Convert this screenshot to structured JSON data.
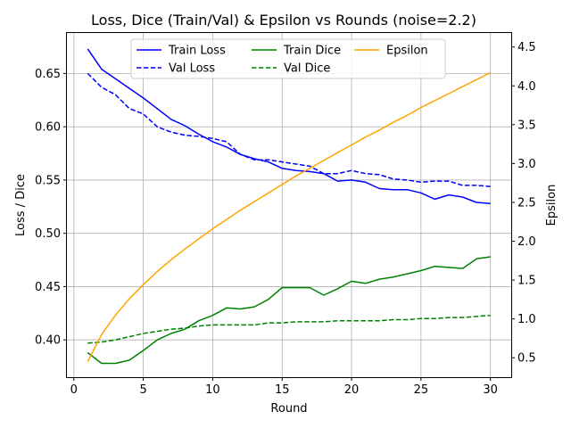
{
  "chart_data": {
    "type": "line",
    "title": "Loss, Dice (Train/Val) & Epsilon vs Rounds (noise=2.2)",
    "xlabel": "Round",
    "ylabel_left": "Loss / Dice",
    "ylabel_right": "Epsilon",
    "xlim": [
      -0.5,
      31.5
    ],
    "ylim_left": [
      0.365,
      0.688
    ],
    "ylim_right": [
      0.25,
      4.68
    ],
    "x_ticks": [
      0,
      5,
      10,
      15,
      20,
      25,
      30
    ],
    "y_left_ticks": [
      0.4,
      0.45,
      0.5,
      0.55,
      0.6,
      0.65
    ],
    "y_right_ticks": [
      0.5,
      1.0,
      1.5,
      2.0,
      2.5,
      3.0,
      3.5,
      4.0,
      4.5
    ],
    "grid": true,
    "legend_position": "top-center",
    "x": [
      1,
      2,
      3,
      4,
      5,
      6,
      7,
      8,
      9,
      10,
      11,
      12,
      13,
      14,
      15,
      16,
      17,
      18,
      19,
      20,
      21,
      22,
      23,
      24,
      25,
      26,
      27,
      28,
      29,
      30
    ],
    "series": [
      {
        "name": "Train Loss",
        "axis": "left",
        "color": "#0000ff",
        "style": "solid",
        "values": [
          0.673,
          0.654,
          0.645,
          0.636,
          0.627,
          0.617,
          0.607,
          0.601,
          0.593,
          0.586,
          0.581,
          0.574,
          0.57,
          0.567,
          0.561,
          0.559,
          0.558,
          0.556,
          0.549,
          0.55,
          0.548,
          0.542,
          0.541,
          0.541,
          0.538,
          0.532,
          0.536,
          0.534,
          0.529,
          0.528
        ]
      },
      {
        "name": "Val Loss",
        "axis": "left",
        "color": "#0000ff",
        "style": "dashed",
        "values": [
          0.65,
          0.637,
          0.63,
          0.617,
          0.612,
          0.6,
          0.595,
          0.592,
          0.591,
          0.589,
          0.586,
          0.574,
          0.569,
          0.569,
          0.567,
          0.565,
          0.563,
          0.556,
          0.556,
          0.559,
          0.556,
          0.555,
          0.551,
          0.55,
          0.548,
          0.549,
          0.549,
          0.545,
          0.545,
          0.544
        ]
      },
      {
        "name": "Train Dice",
        "axis": "left",
        "color": "#008000",
        "style": "solid",
        "values": [
          0.388,
          0.378,
          0.378,
          0.381,
          0.39,
          0.4,
          0.406,
          0.41,
          0.418,
          0.423,
          0.43,
          0.429,
          0.431,
          0.438,
          0.449,
          0.449,
          0.449,
          0.442,
          0.448,
          0.455,
          0.453,
          0.457,
          0.459,
          0.462,
          0.465,
          0.469,
          0.468,
          0.467,
          0.476,
          0.478
        ]
      },
      {
        "name": "Val Dice",
        "axis": "left",
        "color": "#008000",
        "style": "dashed",
        "values": [
          0.397,
          0.398,
          0.4,
          0.403,
          0.406,
          0.408,
          0.41,
          0.411,
          0.413,
          0.414,
          0.414,
          0.414,
          0.414,
          0.416,
          0.416,
          0.417,
          0.417,
          0.417,
          0.418,
          0.418,
          0.418,
          0.418,
          0.419,
          0.419,
          0.42,
          0.42,
          0.421,
          0.421,
          0.422,
          0.423
        ]
      },
      {
        "name": "Epsilon",
        "axis": "right",
        "color": "#ffa500",
        "style": "solid",
        "values": [
          0.45,
          0.8,
          1.05,
          1.26,
          1.44,
          1.61,
          1.76,
          1.9,
          2.03,
          2.16,
          2.28,
          2.4,
          2.51,
          2.62,
          2.73,
          2.84,
          2.94,
          3.04,
          3.14,
          3.24,
          3.34,
          3.43,
          3.53,
          3.62,
          3.72,
          3.81,
          3.9,
          3.99,
          4.08,
          4.17
        ]
      }
    ]
  }
}
